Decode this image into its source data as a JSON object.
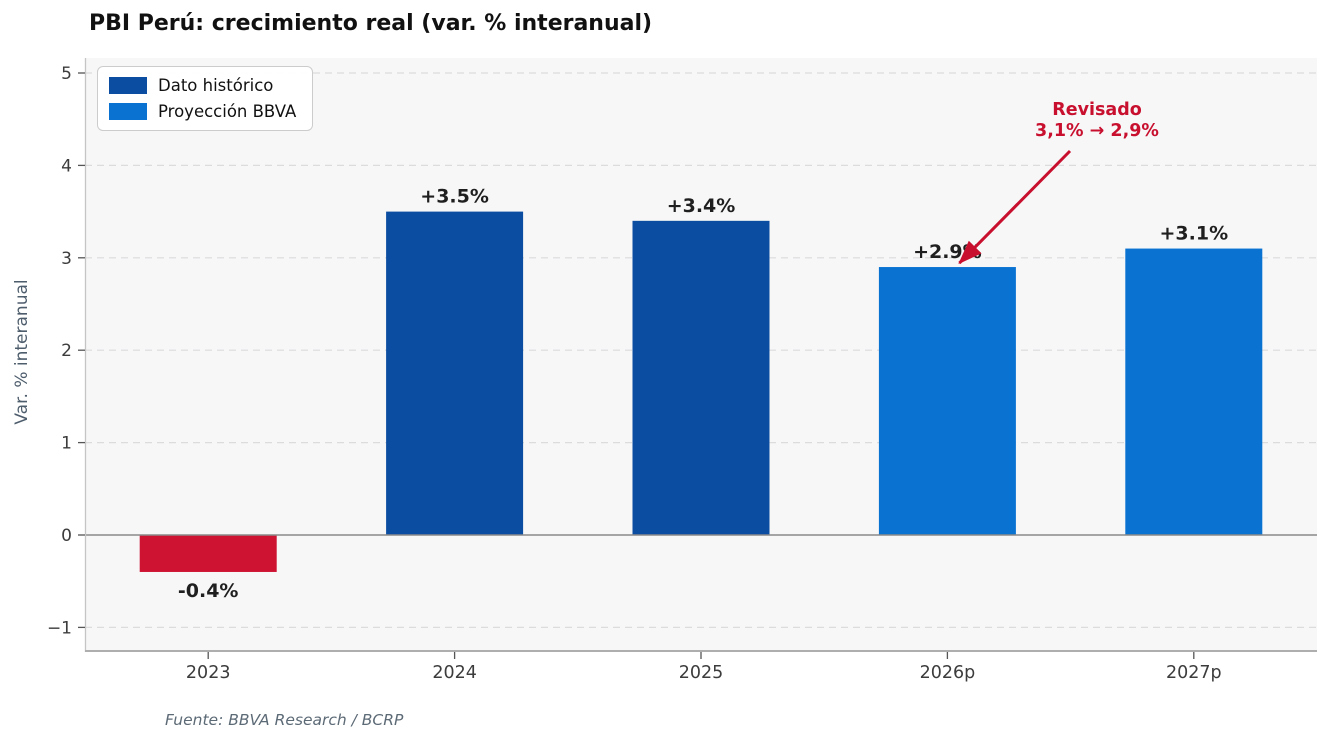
{
  "title": "PBI Perú: crecimiento real (var. % interanual)",
  "y_axis_label": "Var. % interanual",
  "source": "Fuente: BBVA Research / BCRP",
  "legend": [
    {
      "label": "Dato histórico",
      "color": "#0b4da1"
    },
    {
      "label": "Proyección BBVA",
      "color": "#0a73d2"
    }
  ],
  "annotation": {
    "line1": "Revisado",
    "line2": "3,1% → 2,9%",
    "color": "#c8102e",
    "target_category": "2026p"
  },
  "colors": {
    "figure_bg": "#ffffff",
    "plot_bg": "#f7f7f8",
    "grid": "#dcdcdc",
    "zero_line": "#8a8a8a",
    "spine": "#c5c5c5",
    "bottom_spine": "#aeaeae",
    "tick": "#555555",
    "tick_label": "#3c3c3c",
    "bar_label": "#1f1f1f",
    "negative_red": "#ce1232",
    "historical_blue": "#0b4da1",
    "projection_blue": "#0a73d2"
  },
  "chart_data": {
    "type": "bar",
    "title": "PBI Perú: crecimiento real (var. % interanual)",
    "xlabel": "",
    "ylabel": "Var. % interanual",
    "categories": [
      "2023",
      "2024",
      "2025",
      "2026p",
      "2027p"
    ],
    "values": [
      -0.4,
      3.5,
      3.4,
      2.9,
      3.1
    ],
    "bar_labels": [
      "-0.4%",
      "+3.5%",
      "+3.4%",
      "+2.9%",
      "+3.1%"
    ],
    "bar_colors": [
      "#ce1232",
      "#0b4da1",
      "#0b4da1",
      "#0a73d2",
      "#0a73d2"
    ],
    "bar_series": [
      "negative",
      "Dato histórico",
      "Dato histórico",
      "Proyección BBVA",
      "Proyección BBVA"
    ],
    "yticks": [
      -1,
      0,
      1,
      2,
      3,
      4,
      5
    ],
    "ytick_labels": [
      "−1",
      "0",
      "1",
      "2",
      "3",
      "4",
      "5"
    ],
    "ylim": [
      -1.3,
      5.2
    ],
    "grid": "horizontal-dashed",
    "legend_position": "upper-left"
  }
}
